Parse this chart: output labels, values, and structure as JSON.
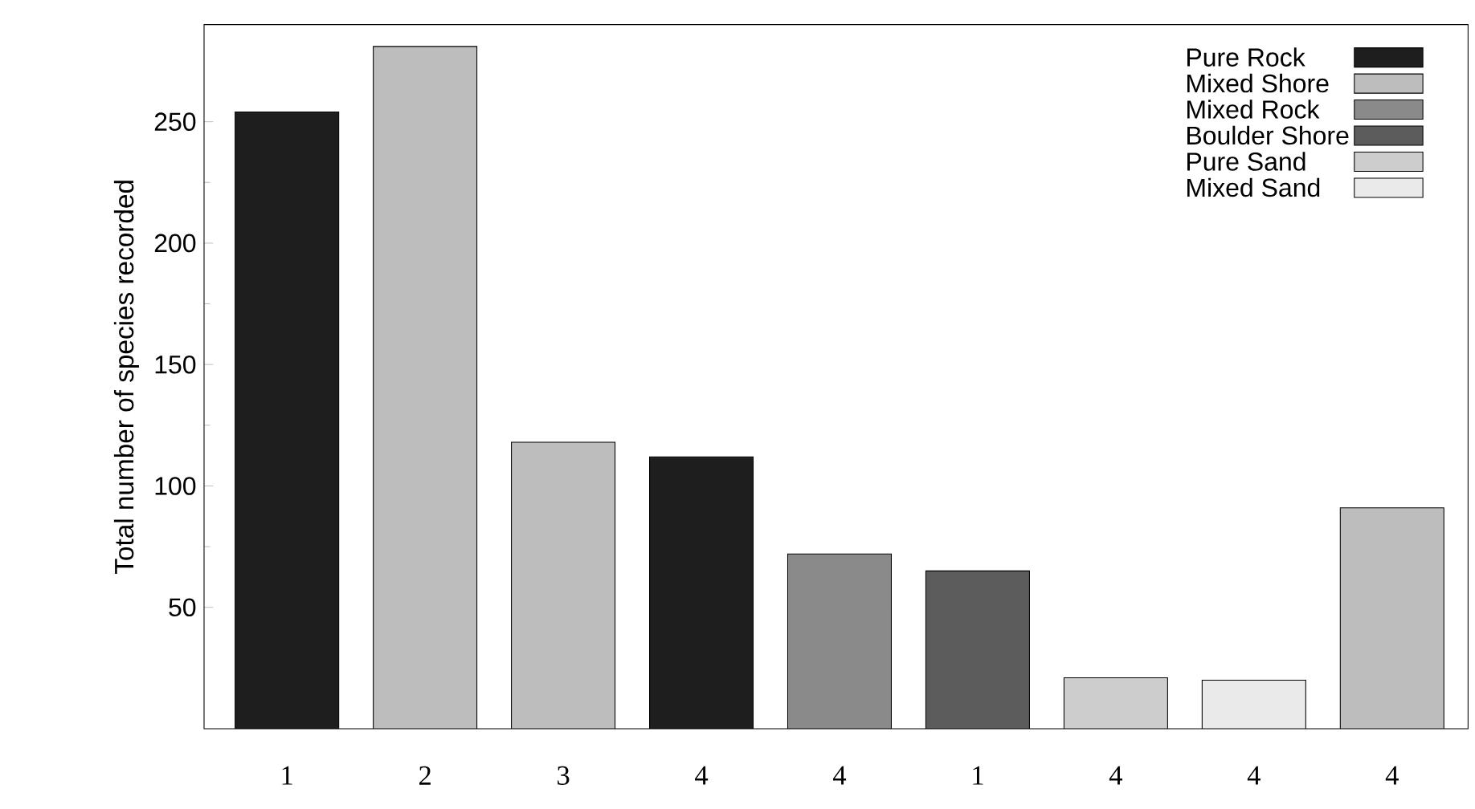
{
  "chart_data": {
    "type": "bar",
    "ylabel": "Total number of species recorded",
    "categories": [
      "1",
      "2",
      "3",
      "4",
      "4",
      "1",
      "4",
      "4",
      "4"
    ],
    "series": [
      {
        "name": "Pure Rock",
        "color": "#1e1e1e",
        "values": [
          254,
          null,
          null,
          112,
          null,
          null,
          null,
          null,
          null
        ]
      },
      {
        "name": "Mixed Shore",
        "color": "#bdbdbd",
        "values": [
          null,
          281,
          118,
          null,
          null,
          null,
          null,
          null,
          91
        ]
      },
      {
        "name": "Mixed Rock",
        "color": "#8a8a8a",
        "values": [
          null,
          null,
          null,
          null,
          72,
          null,
          null,
          null,
          null
        ]
      },
      {
        "name": "Boulder Shore",
        "color": "#5c5c5c",
        "values": [
          null,
          null,
          null,
          null,
          null,
          65,
          null,
          null,
          null
        ]
      },
      {
        "name": "Pure Sand",
        "color": "#cdcdcd",
        "values": [
          null,
          null,
          null,
          null,
          null,
          null,
          21,
          null,
          null
        ]
      },
      {
        "name": "Mixed Sand",
        "color": "#eaeaea",
        "values": [
          null,
          null,
          null,
          null,
          null,
          null,
          null,
          20,
          null
        ]
      }
    ],
    "ylim": [
      0,
      290
    ],
    "yticks": [
      50,
      100,
      150,
      200,
      250
    ],
    "legend": "top right"
  }
}
